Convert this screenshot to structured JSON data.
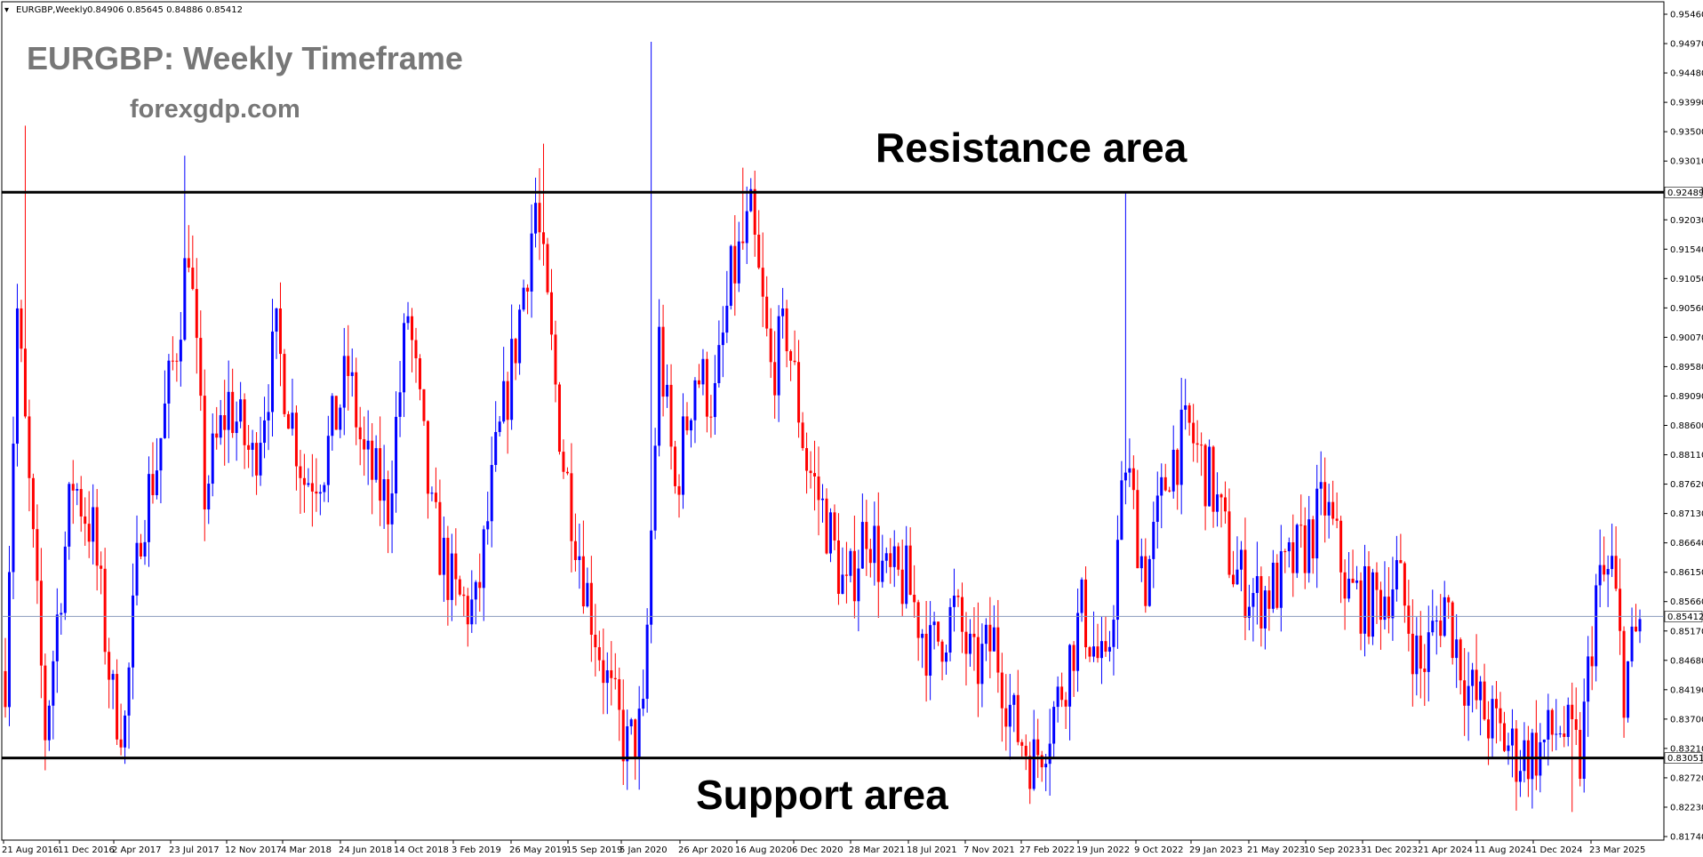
{
  "header": {
    "symbol": "EURGBP,Weekly",
    "ohlc": "0.84906 0.85645 0.84886 0.85412"
  },
  "watermark": {
    "title": "EURGBP: Weekly Timeframe",
    "site": "forexgdp.com"
  },
  "colors": {
    "bull": "#0000ff",
    "bear": "#ff0000",
    "level_line": "#000000",
    "current_line": "#8899bb"
  },
  "chart_data": {
    "type": "candlestick",
    "title": "",
    "ylim": [
      0.8174,
      0.9546
    ],
    "yticks": [
      "0.95460",
      "0.94970",
      "0.94480",
      "0.93990",
      "0.93500",
      "0.93010",
      "0.92520",
      "0.92030",
      "0.91540",
      "0.91050",
      "0.90560",
      "0.90070",
      "0.89580",
      "0.89090",
      "0.88600",
      "0.88110",
      "0.87620",
      "0.87130",
      "0.86640",
      "0.86150",
      "0.85660",
      "0.85170",
      "0.84680",
      "0.84190",
      "0.83700",
      "0.83210",
      "0.82720",
      "0.82230",
      "0.81740"
    ],
    "xticks": [
      "21 Aug 2016",
      "11 Dec 2016",
      "2 Apr 2017",
      "23 Jul 2017",
      "12 Nov 2017",
      "4 Mar 2018",
      "24 Jun 2018",
      "14 Oct 2018",
      "3 Feb 2019",
      "26 May 2019",
      "15 Sep 2019",
      "5 Jan 2020",
      "26 Apr 2020",
      "16 Aug 2020",
      "6 Dec 2020",
      "28 Mar 2021",
      "18 Jul 2021",
      "7 Nov 2021",
      "27 Feb 2022",
      "19 Jun 2022",
      "9 Oct 2022",
      "29 Jan 2023",
      "21 May 2023",
      "10 Sep 2023",
      "31 Dec 2023",
      "21 Apr 2024",
      "11 Aug 2024",
      "1 Dec 2024",
      "23 Mar 2025"
    ],
    "levels": [
      {
        "name": "Resistance area",
        "value": 0.92489,
        "label": "0.92489"
      },
      {
        "name": "Support area",
        "value": 0.83051,
        "label": "0.83051"
      }
    ],
    "current_price": {
      "value": 0.85412,
      "label": "0.85412"
    },
    "price_path": [
      [
        0,
        0.845
      ],
      [
        3,
        0.905
      ],
      [
        6,
        0.875
      ],
      [
        10,
        0.835
      ],
      [
        14,
        0.86
      ],
      [
        17,
        0.877
      ],
      [
        22,
        0.868
      ],
      [
        27,
        0.84
      ],
      [
        30,
        0.836
      ],
      [
        34,
        0.87
      ],
      [
        38,
        0.88
      ],
      [
        43,
        0.9
      ],
      [
        46,
        0.917
      ],
      [
        50,
        0.875
      ],
      [
        56,
        0.89
      ],
      [
        62,
        0.88
      ],
      [
        68,
        0.9
      ],
      [
        75,
        0.877
      ],
      [
        80,
        0.88
      ],
      [
        86,
        0.895
      ],
      [
        90,
        0.88
      ],
      [
        96,
        0.873
      ],
      [
        101,
        0.905
      ],
      [
        107,
        0.87
      ],
      [
        113,
        0.857
      ],
      [
        118,
        0.855
      ],
      [
        123,
        0.88
      ],
      [
        128,
        0.9
      ],
      [
        133,
        0.923
      ],
      [
        140,
        0.88
      ],
      [
        146,
        0.858
      ],
      [
        152,
        0.84
      ],
      [
        156,
        0.832
      ],
      [
        160,
        0.836
      ],
      [
        164,
        0.9
      ],
      [
        168,
        0.875
      ],
      [
        173,
        0.895
      ],
      [
        178,
        0.89
      ],
      [
        182,
        0.91
      ],
      [
        187,
        0.92
      ],
      [
        192,
        0.895
      ],
      [
        196,
        0.902
      ],
      [
        201,
        0.88
      ],
      [
        206,
        0.87
      ],
      [
        211,
        0.857
      ],
      [
        216,
        0.87
      ],
      [
        221,
        0.86
      ],
      [
        226,
        0.86
      ],
      [
        232,
        0.848
      ],
      [
        238,
        0.855
      ],
      [
        243,
        0.845
      ],
      [
        248,
        0.85
      ],
      [
        253,
        0.836
      ],
      [
        258,
        0.83
      ],
      [
        264,
        0.84
      ],
      [
        270,
        0.855
      ],
      [
        276,
        0.843
      ],
      [
        281,
        0.88
      ],
      [
        286,
        0.86
      ],
      [
        292,
        0.88
      ],
      [
        297,
        0.885
      ],
      [
        303,
        0.875
      ],
      [
        308,
        0.862
      ],
      [
        314,
        0.857
      ],
      [
        320,
        0.86
      ],
      [
        326,
        0.866
      ],
      [
        331,
        0.873
      ],
      [
        337,
        0.858
      ],
      [
        343,
        0.856
      ],
      [
        349,
        0.861
      ],
      [
        355,
        0.845
      ],
      [
        361,
        0.857
      ],
      [
        367,
        0.842
      ],
      [
        373,
        0.836
      ],
      [
        379,
        0.831
      ],
      [
        385,
        0.832
      ],
      [
        390,
        0.836
      ],
      [
        395,
        0.83
      ],
      [
        399,
        0.858
      ],
      [
        403,
        0.862
      ],
      [
        406,
        0.843
      ],
      [
        410,
        0.853
      ]
    ],
    "highlight_wicks": [
      [
        5,
        0.936
      ],
      [
        45,
        0.931
      ],
      [
        135,
        0.933
      ],
      [
        162,
        0.95
      ],
      [
        185,
        0.929
      ],
      [
        281,
        0.9249
      ],
      [
        393,
        0.8215
      ]
    ]
  },
  "labels": {
    "resistance": "Resistance area",
    "support": "Support area"
  }
}
